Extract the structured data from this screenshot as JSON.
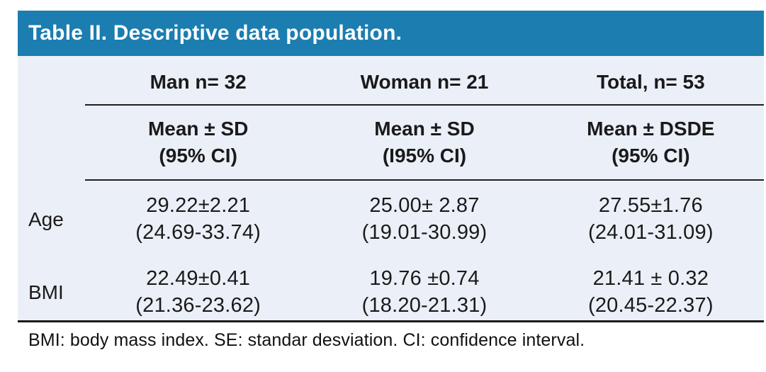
{
  "title": "Table II. Descriptive data population.",
  "table": {
    "columns": [
      {
        "group": "Man n= 32",
        "stat_line1": "Mean ± SD",
        "stat_line2": "(95% CI)"
      },
      {
        "group": "Woman n= 21",
        "stat_line1": "Mean ± SD",
        "stat_line2": "(I95% CI)"
      },
      {
        "group": "Total, n= 53",
        "stat_line1": "Mean ± DSDE",
        "stat_line2": "(95% CI)"
      }
    ],
    "rows": [
      {
        "label": "Age",
        "cells": [
          {
            "mean_sd": "29.22±2.21",
            "ci": "(24.69-33.74)"
          },
          {
            "mean_sd": "25.00± 2.87",
            "ci": "(19.01-30.99)"
          },
          {
            "mean_sd": "27.55±1.76",
            "ci": "(24.01-31.09)"
          }
        ]
      },
      {
        "label": "BMI",
        "cells": [
          {
            "mean_sd": "22.49±0.41",
            "ci": "(21.36-23.62)"
          },
          {
            "mean_sd": "19.76 ±0.74",
            "ci": "(18.20-21.31)"
          },
          {
            "mean_sd": "21.41 ± 0.32",
            "ci": "(20.45-22.37)"
          }
        ]
      }
    ]
  },
  "footnote": "BMI: body mass index. SE: standar desviation. CI: confidence interval.",
  "colors": {
    "title_bar_bg": "#1b7db0",
    "title_text": "#ffffff",
    "table_bg": "#ebeff7",
    "rule_color": "#1a1a1a",
    "text_color": "#1a1a1a"
  }
}
